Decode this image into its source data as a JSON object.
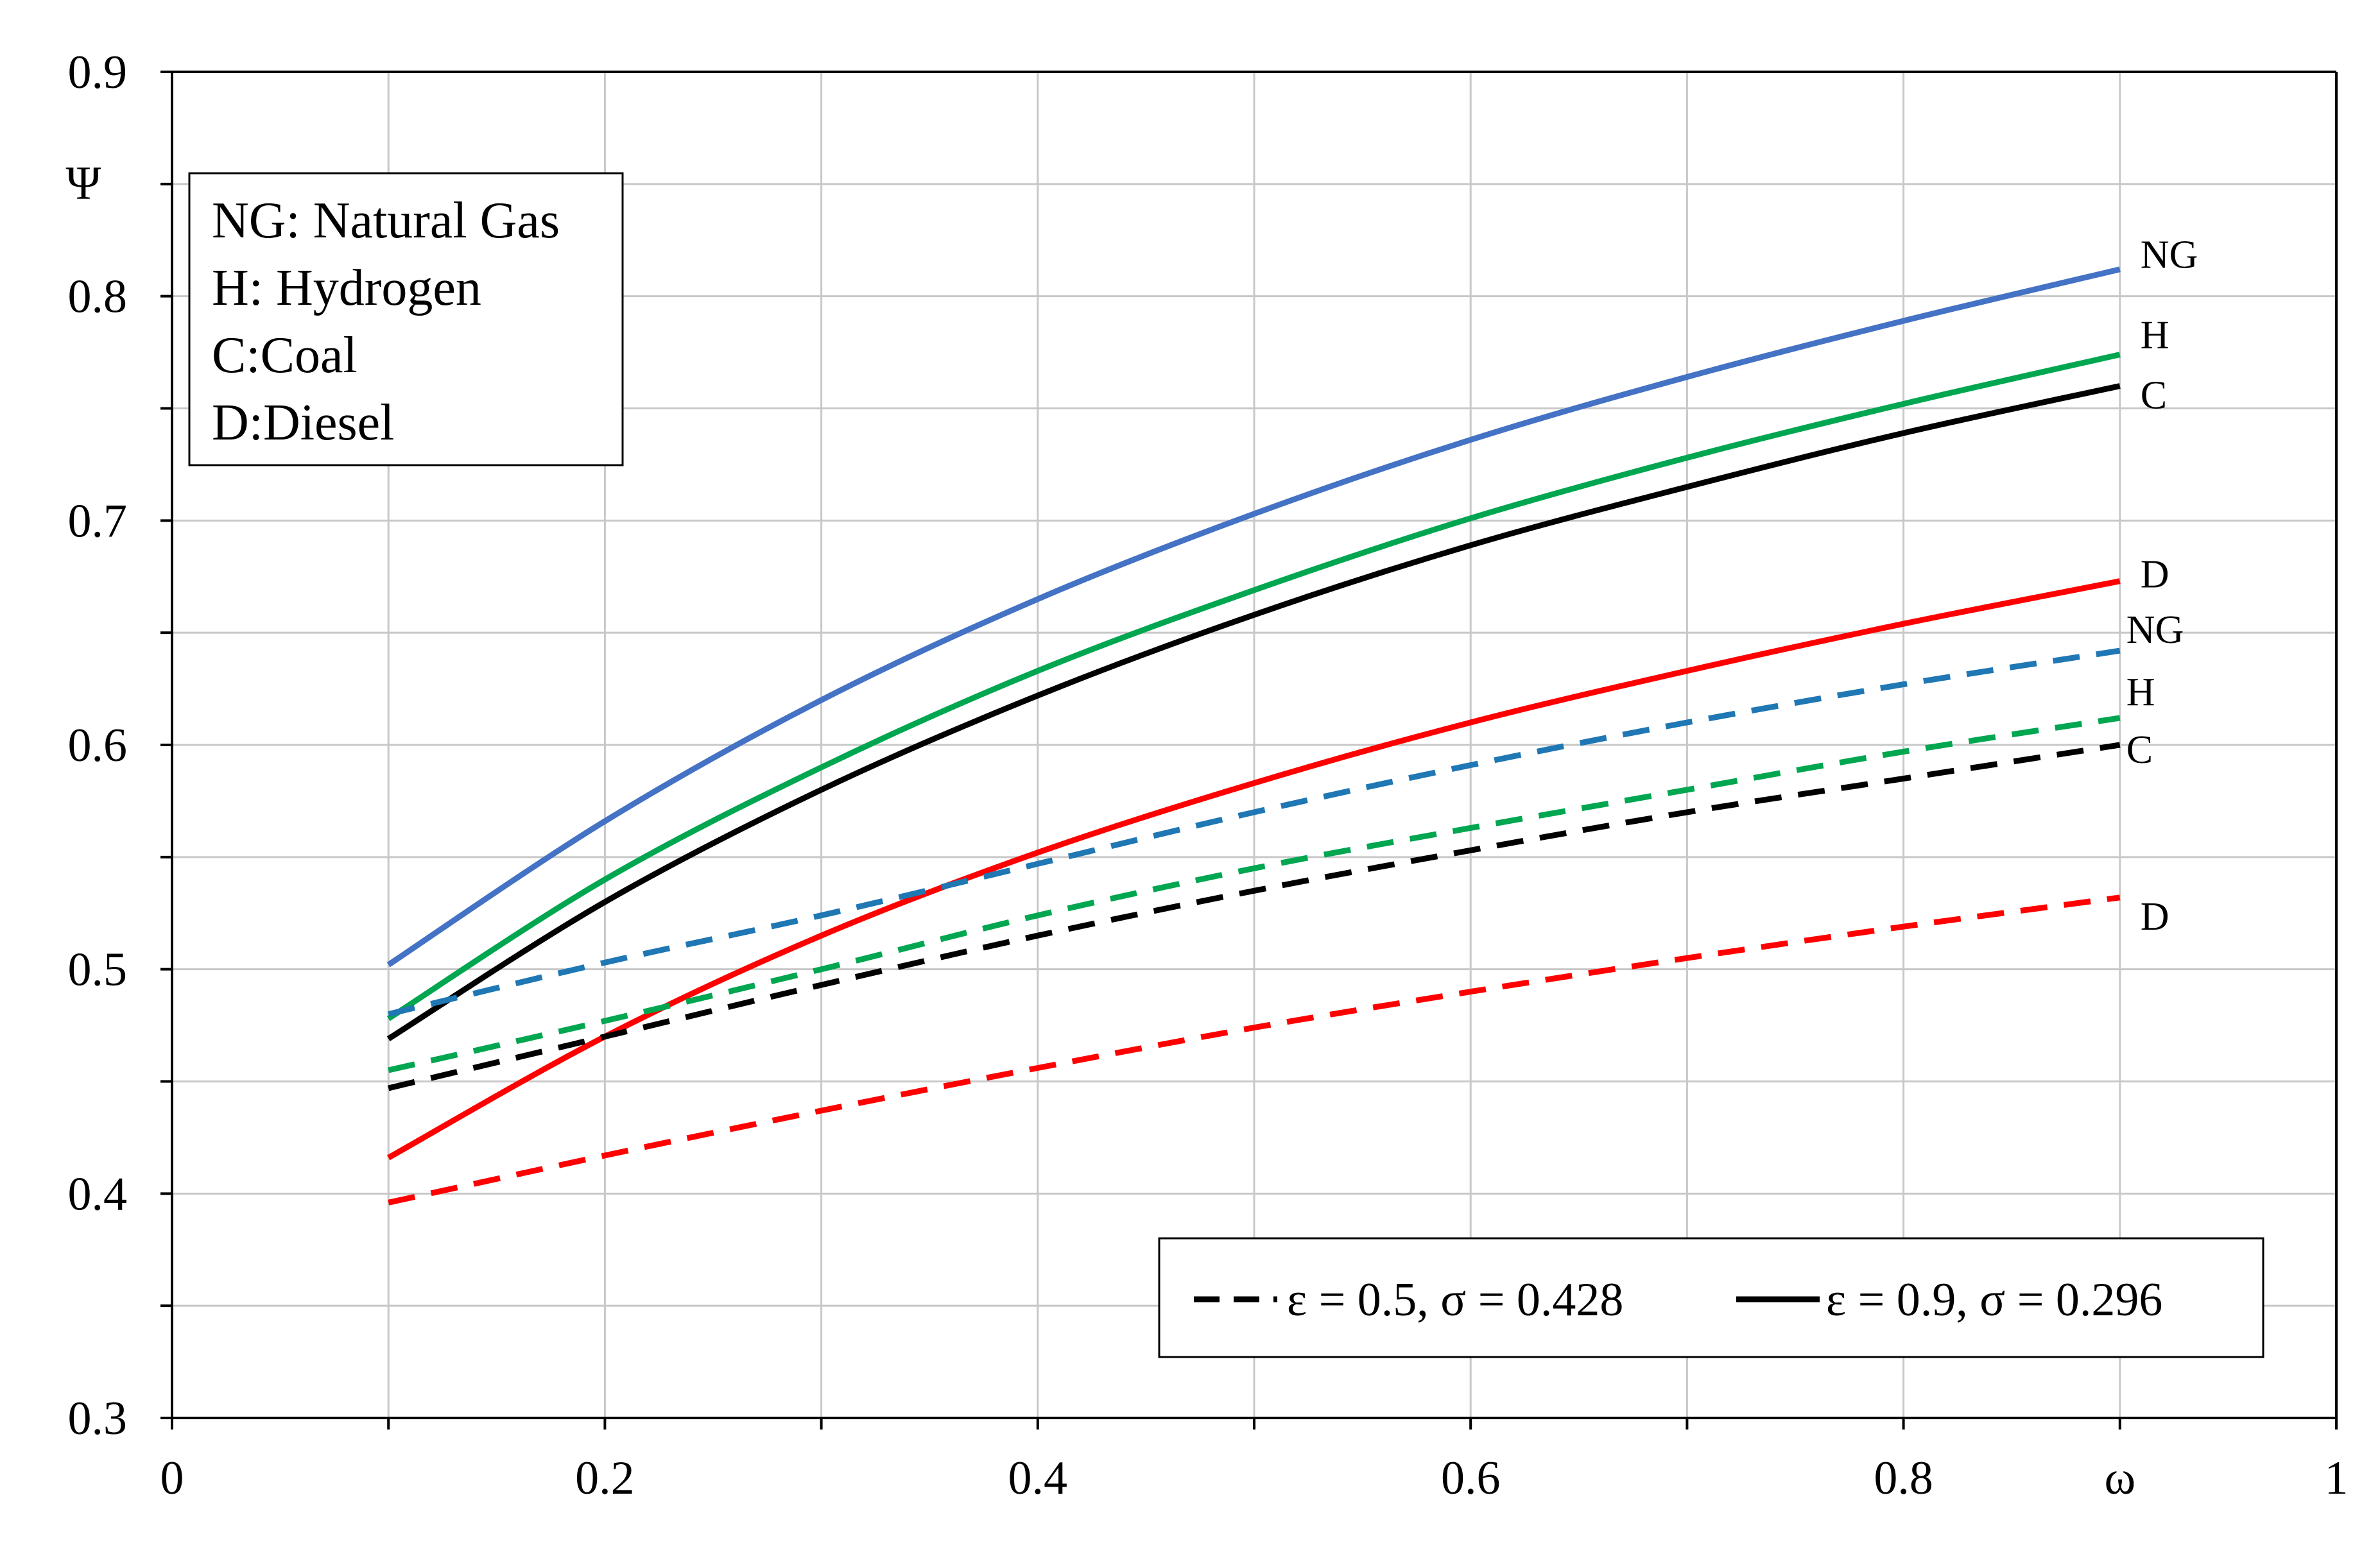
{
  "chart_data": {
    "type": "line",
    "title": "",
    "xlabel": "ω",
    "ylabel": "Ψ",
    "xlim": [
      0,
      1
    ],
    "ylim": [
      0.3,
      0.9
    ],
    "xticks": [
      "0",
      "0.2",
      "0.4",
      "0.6",
      "0.8",
      "1"
    ],
    "xtick_values": [
      0,
      0.2,
      0.4,
      0.6,
      0.8,
      1
    ],
    "yticks": [
      "0.3",
      "0.4",
      "0.5",
      "0.6",
      "0.7",
      "0.8",
      "0.9"
    ],
    "ytick_values": [
      0.3,
      0.4,
      0.5,
      0.6,
      0.7,
      0.8,
      0.9
    ],
    "grid": true,
    "x": [
      0.1,
      0.2,
      0.3,
      0.4,
      0.5,
      0.6,
      0.7,
      0.8,
      0.9
    ],
    "series": [
      {
        "name": "NG (ε = 0.9, σ = 0.296)",
        "end_label": "NG",
        "color": "#4472C4",
        "dash": "solid",
        "values": [
          0.502,
          0.566,
          0.62,
          0.665,
          0.703,
          0.736,
          0.764,
          0.789,
          0.812
        ]
      },
      {
        "name": "H (ε = 0.9, σ = 0.296)",
        "end_label": "H",
        "color": "#00A650",
        "dash": "solid",
        "values": [
          0.478,
          0.54,
          0.59,
          0.633,
          0.669,
          0.701,
          0.728,
          0.752,
          0.774
        ]
      },
      {
        "name": "C (ε = 0.9, σ = 0.296)",
        "end_label": "C",
        "color": "#000000",
        "dash": "solid",
        "values": [
          0.469,
          0.53,
          0.58,
          0.622,
          0.658,
          0.689,
          0.715,
          0.739,
          0.76
        ]
      },
      {
        "name": "D (ε = 0.9, σ = 0.296)",
        "end_label": "D",
        "color": "#FF0000",
        "dash": "solid",
        "values": [
          0.416,
          0.47,
          0.515,
          0.552,
          0.583,
          0.61,
          0.633,
          0.654,
          0.673
        ]
      },
      {
        "name": "NG (ε = 0.5, σ = 0.428)",
        "end_label": "NG",
        "color": "#1F77B4",
        "dash": "dashed",
        "values": [
          0.48,
          0.503,
          0.524,
          0.547,
          0.57,
          0.591,
          0.61,
          0.627,
          0.642
        ]
      },
      {
        "name": "H (ε = 0.5, σ = 0.428)",
        "end_label": "H",
        "color": "#00A650",
        "dash": "dashed",
        "values": [
          0.455,
          0.477,
          0.5,
          0.524,
          0.545,
          0.563,
          0.58,
          0.597,
          0.612
        ]
      },
      {
        "name": "C (ε = 0.5, σ = 0.428)",
        "end_label": "C",
        "color": "#000000",
        "dash": "dashed",
        "values": [
          0.447,
          0.47,
          0.493,
          0.515,
          0.535,
          0.553,
          0.57,
          0.585,
          0.6
        ]
      },
      {
        "name": "D (ε = 0.5, σ = 0.428)",
        "end_label": "D",
        "color": "#FF0000",
        "dash": "dashed",
        "values": [
          0.396,
          0.417,
          0.437,
          0.456,
          0.474,
          0.49,
          0.505,
          0.519,
          0.532
        ]
      }
    ],
    "fuel_key": {
      "position": "top-left",
      "lines": [
        "NG: Natural Gas",
        "H: Hydrogen",
        "C:Coal",
        "D:Diesel"
      ]
    },
    "legend": {
      "position": "bottom-right",
      "entries": [
        {
          "label": "ε = 0.5, σ = 0.428",
          "dash": "dashed",
          "color": "#000000"
        },
        {
          "label": "ε = 0.9, σ = 0.296",
          "dash": "solid",
          "color": "#000000"
        }
      ]
    }
  }
}
